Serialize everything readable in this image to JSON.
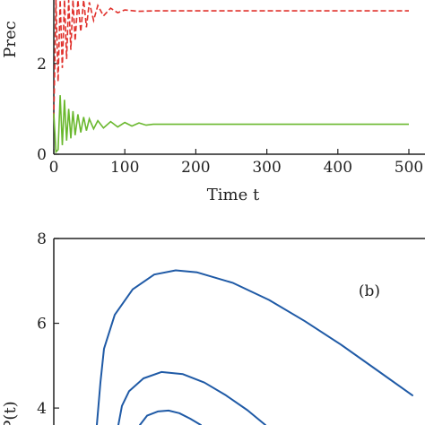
{
  "chart_data": [
    {
      "panel": "a",
      "type": "line",
      "xlabel": "Time t",
      "ylabel": "Prec",
      "xlim": [
        0,
        500
      ],
      "ylim": [
        0,
        3.4
      ],
      "xticks": [
        "0",
        "100",
        "200",
        "300",
        "400",
        "500"
      ],
      "yticks": [
        "0",
        "2"
      ],
      "grid": false,
      "series": [
        {
          "color": "#e0302b",
          "style": "dashed",
          "x": [
            0,
            3,
            6,
            9,
            12,
            15,
            18,
            21,
            24,
            27,
            30,
            34,
            38,
            42,
            46,
            50,
            56,
            62,
            70,
            80,
            90,
            100,
            120,
            140,
            200,
            300,
            400,
            500
          ],
          "y": [
            0.8,
            3.4,
            1.6,
            3.4,
            1.9,
            3.4,
            2.1,
            3.4,
            2.3,
            3.4,
            2.5,
            3.4,
            2.7,
            3.4,
            2.8,
            3.35,
            2.95,
            3.28,
            3.05,
            3.22,
            3.12,
            3.18,
            3.15,
            3.16,
            3.16,
            3.16,
            3.16,
            3.16
          ]
        },
        {
          "color": "#6ab82e",
          "style": "solid",
          "x": [
            0,
            3,
            6,
            9,
            12,
            15,
            18,
            21,
            24,
            27,
            30,
            34,
            38,
            42,
            46,
            50,
            56,
            62,
            70,
            80,
            90,
            100,
            110,
            120,
            130,
            140,
            200,
            300,
            400,
            500
          ],
          "y": [
            0.9,
            0.05,
            0.1,
            1.3,
            0.2,
            1.2,
            0.3,
            1.0,
            0.35,
            0.95,
            0.42,
            0.88,
            0.48,
            0.82,
            0.52,
            0.78,
            0.56,
            0.74,
            0.58,
            0.72,
            0.6,
            0.7,
            0.62,
            0.69,
            0.64,
            0.66,
            0.66,
            0.66,
            0.66,
            0.66
          ]
        }
      ]
    },
    {
      "panel": "b",
      "type": "line",
      "label": "(b)",
      "ylabel": "P(t)",
      "ylim": [
        3.6,
        8
      ],
      "yticks": [
        "4",
        "6",
        "8"
      ],
      "grid": false,
      "series": [
        {
          "color": "#1f5aa6",
          "style": "solid",
          "curves": [
            {
              "x": [
                0.6,
                0.65,
                0.7,
                0.85,
                1.1,
                1.4,
                1.7,
                2.0,
                2.5,
                3.0,
                3.5,
                4.0,
                4.5,
                5.0
              ],
              "y": [
                3.6,
                4.6,
                5.4,
                6.2,
                6.8,
                7.15,
                7.25,
                7.2,
                6.95,
                6.55,
                6.05,
                5.5,
                4.9,
                4.3
              ]
            },
            {
              "x": [
                0.9,
                0.95,
                1.05,
                1.25,
                1.5,
                1.8,
                2.1,
                2.4,
                2.7,
                2.95
              ],
              "y": [
                3.6,
                4.05,
                4.4,
                4.7,
                4.85,
                4.8,
                4.6,
                4.3,
                3.95,
                3.6
              ]
            },
            {
              "x": [
                1.2,
                1.3,
                1.45,
                1.6,
                1.75,
                1.9,
                2.05
              ],
              "y": [
                3.6,
                3.82,
                3.92,
                3.94,
                3.88,
                3.75,
                3.6
              ]
            }
          ]
        }
      ]
    }
  ]
}
